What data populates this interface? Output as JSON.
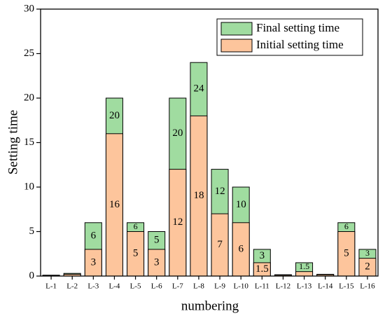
{
  "chart_data": {
    "type": "overlap_bar",
    "x_label": "numbering",
    "y_label": "Setting time",
    "categories": [
      "L-1",
      "L-2",
      "L-3",
      "L-4",
      "L-5",
      "L-6",
      "L-7",
      "L-8",
      "L-9",
      "L-10",
      "L-11",
      "L-12",
      "L-13",
      "L-14",
      "L-15",
      "L-16"
    ],
    "series": [
      {
        "name": "Final setting time",
        "color": "#a0dca0",
        "values": [
          0.1,
          0.3,
          6,
          20,
          6,
          5,
          20,
          24,
          12,
          10,
          3,
          0.15,
          1.5,
          0.2,
          6,
          3
        ],
        "value_labels": [
          null,
          null,
          "6",
          "20",
          "6",
          "5",
          "20",
          "24",
          "12",
          "10",
          "3",
          null,
          "1.5",
          null,
          "6",
          "3"
        ]
      },
      {
        "name": "Initial setting time",
        "color": "#fdc59c",
        "values": [
          0.08,
          0.2,
          3,
          16,
          5,
          3,
          12,
          18,
          7,
          6,
          1.5,
          0.1,
          0.5,
          0.15,
          5,
          2
        ],
        "value_labels": [
          null,
          null,
          "3",
          "16",
          "5",
          "3",
          "12",
          "18",
          "7",
          "6",
          "1.5",
          null,
          null,
          null,
          "5",
          "2"
        ]
      }
    ],
    "ylim": [
      0,
      30
    ],
    "yticks": [
      0,
      5,
      10,
      15,
      20,
      25,
      30
    ],
    "legend": "upper right"
  }
}
